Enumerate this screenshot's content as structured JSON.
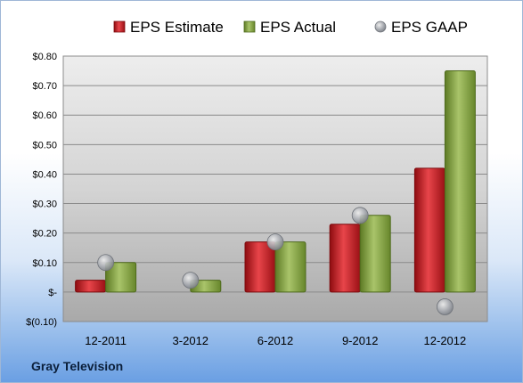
{
  "chart_data": {
    "type": "bar",
    "categories": [
      "12-2011",
      "3-2012",
      "6-2012",
      "9-2012",
      "12-2012"
    ],
    "series": [
      {
        "name": "EPS Estimate",
        "kind": "bar",
        "color": "#c0161c",
        "values": [
          0.04,
          null,
          0.17,
          0.23,
          0.42
        ]
      },
      {
        "name": "EPS Actual",
        "kind": "bar",
        "color": "#7f9d3e",
        "values": [
          0.1,
          0.04,
          0.17,
          0.26,
          0.75
        ]
      },
      {
        "name": "EPS GAAP",
        "kind": "marker",
        "color": "#a5a8ae",
        "values": [
          0.1,
          0.04,
          0.17,
          0.26,
          -0.05
        ]
      }
    ],
    "ylim": [
      -0.1,
      0.8
    ],
    "yticks": [
      0.8,
      0.7,
      0.6,
      0.5,
      0.4,
      0.3,
      0.2,
      0.1,
      0.0,
      -0.1
    ],
    "ytick_labels": [
      "$0.80",
      "$0.70",
      "$0.60",
      "$0.50",
      "$0.40",
      "$0.30",
      "$0.20",
      "$0.10",
      "$-",
      "$(0.10)"
    ],
    "grid": true,
    "legend_position": "top"
  },
  "footer": {
    "company": "Gray Television"
  }
}
